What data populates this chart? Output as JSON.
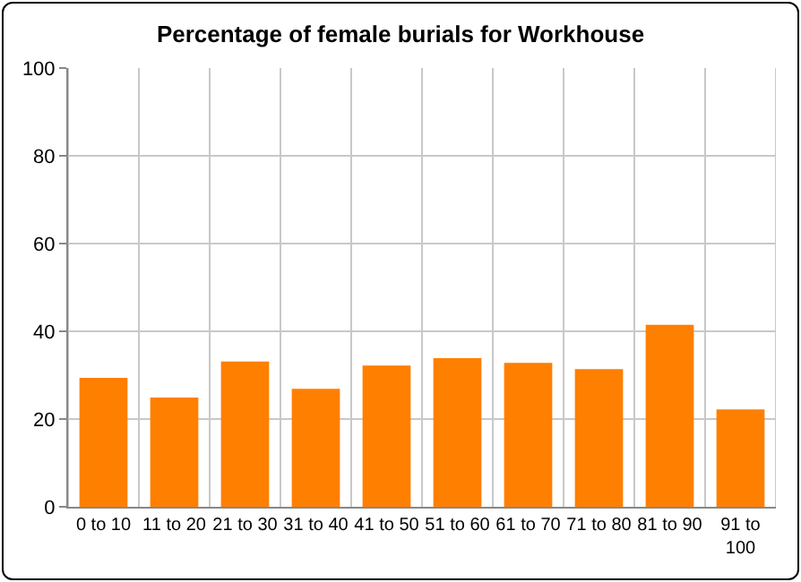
{
  "chart_data": {
    "type": "bar",
    "title": "Percentage of female burials for Workhouse",
    "categories": [
      "0 to 10",
      "11 to 20",
      "21 to 30",
      "31 to 40",
      "41 to 50",
      "51 to 60",
      "61 to 70",
      "71 to 80",
      "81 to 90",
      "91 to 100"
    ],
    "values": [
      29.4,
      24.9,
      33.1,
      26.9,
      32.2,
      33.9,
      32.8,
      31.4,
      41.5,
      22.2
    ],
    "color": "#ff7f00",
    "ylim": [
      0,
      100
    ],
    "yticks": [
      0,
      20,
      40,
      60,
      80,
      100
    ],
    "grid": true
  }
}
